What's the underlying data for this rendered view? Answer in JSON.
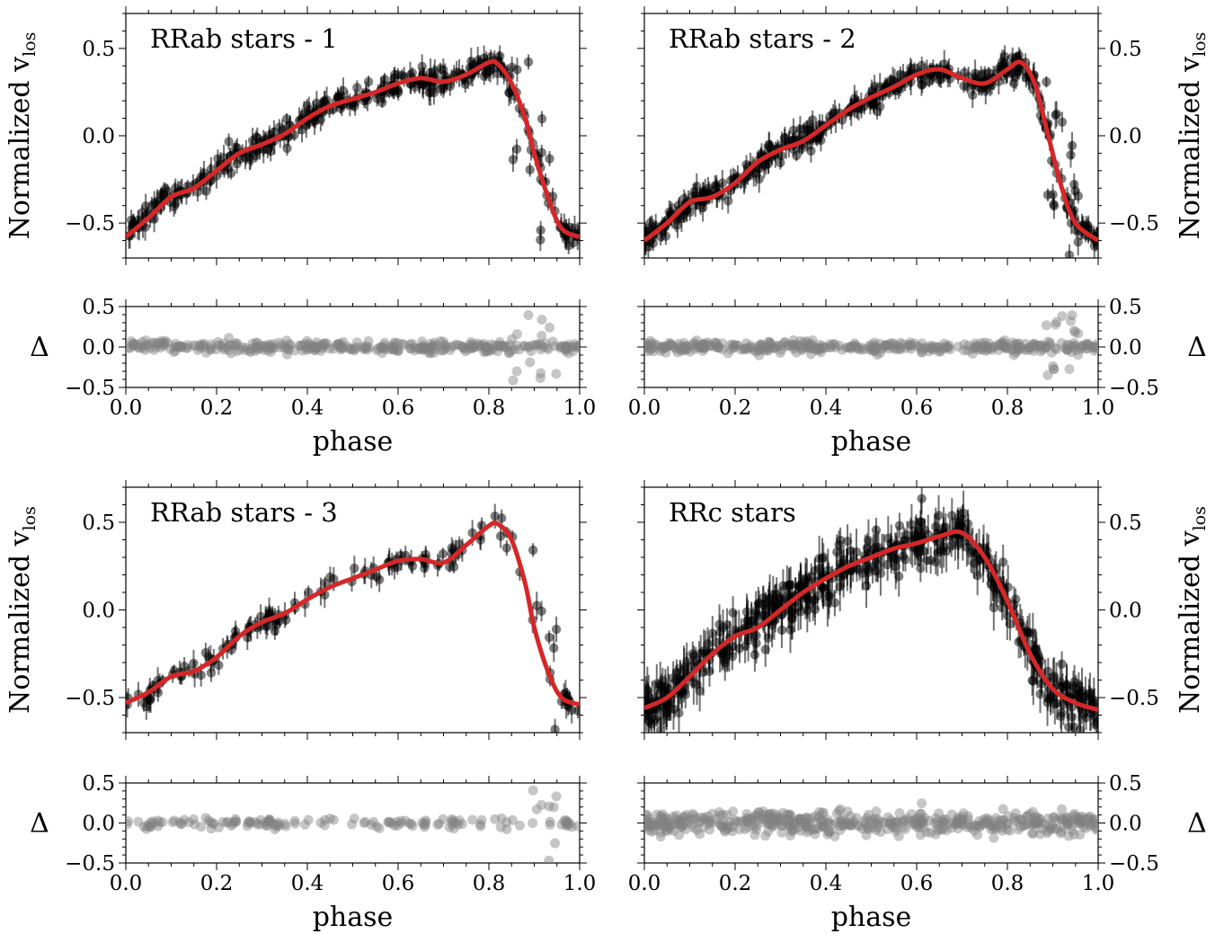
{
  "figure": {
    "shared_xlabel": "phase",
    "main_ylabel_left": "Normalized v",
    "main_ylabel_sub": "los",
    "residual_ylabel": "Δ"
  },
  "colors": {
    "model_curve": "#d62728",
    "data_points": "#000000",
    "residual_points": "#808080",
    "axes": "#000000",
    "background": "#ffffff"
  },
  "chart_data": [
    {
      "type": "scatter",
      "panel": "top-left",
      "title": "RRab stars - 1",
      "xlabel": "phase",
      "ylabel": "Normalized v_los",
      "ylabel_side": "left",
      "xlim": [
        0.0,
        1.0
      ],
      "ylim": [
        -0.7,
        0.7
      ],
      "yticks": [
        -0.5,
        0.0,
        0.5
      ],
      "ytick_labels": [
        "−0.5",
        "0.0",
        "0.5"
      ],
      "xticks": [
        0.0,
        0.2,
        0.4,
        0.6,
        0.8,
        1.0
      ],
      "xtick_labels": [
        "0.0",
        "0.2",
        "0.4",
        "0.6",
        "0.8",
        "1.0"
      ],
      "model_curve": {
        "x": [
          0.0,
          0.05,
          0.1,
          0.15,
          0.2,
          0.25,
          0.3,
          0.35,
          0.4,
          0.45,
          0.5,
          0.55,
          0.6,
          0.65,
          0.7,
          0.75,
          0.8,
          0.82,
          0.85,
          0.88,
          0.9,
          0.93,
          0.96,
          1.0
        ],
        "y": [
          -0.58,
          -0.47,
          -0.35,
          -0.3,
          -0.2,
          -0.1,
          -0.05,
          0.01,
          0.1,
          0.17,
          0.21,
          0.25,
          0.3,
          0.33,
          0.31,
          0.35,
          0.42,
          0.41,
          0.3,
          0.1,
          -0.1,
          -0.35,
          -0.53,
          -0.58
        ]
      },
      "points_approx_count": 350,
      "residuals": {
        "ylabel": "Δ",
        "ylim": [
          -0.5,
          0.5
        ],
        "yticks": [
          -0.5,
          0.0,
          0.5
        ],
        "ytick_labels": [
          "−0.5",
          "0.0",
          "0.5"
        ],
        "xlabel": "phase",
        "description_range": [
          -0.2,
          0.2
        ],
        "large_deviation_phase": [
          0.85,
          0.95
        ]
      }
    },
    {
      "type": "scatter",
      "panel": "top-right",
      "title": "RRab stars - 2",
      "xlabel": "phase",
      "ylabel": "Normalized v_los",
      "ylabel_side": "right",
      "xlim": [
        0.0,
        1.0
      ],
      "ylim": [
        -0.7,
        0.7
      ],
      "yticks": [
        -0.5,
        0.0,
        0.5
      ],
      "ytick_labels": [
        "−0.5",
        "0.0",
        "0.5"
      ],
      "xticks": [
        0.0,
        0.2,
        0.4,
        0.6,
        0.8,
        1.0
      ],
      "xtick_labels": [
        "0.0",
        "0.2",
        "0.4",
        "0.6",
        "0.8",
        "1.0"
      ],
      "model_curve": {
        "x": [
          0.0,
          0.05,
          0.1,
          0.15,
          0.2,
          0.25,
          0.3,
          0.35,
          0.4,
          0.45,
          0.5,
          0.55,
          0.6,
          0.65,
          0.7,
          0.75,
          0.8,
          0.83,
          0.86,
          0.89,
          0.92,
          0.95,
          1.0
        ],
        "y": [
          -0.6,
          -0.5,
          -0.38,
          -0.35,
          -0.27,
          -0.15,
          -0.08,
          -0.03,
          0.06,
          0.15,
          0.22,
          0.28,
          0.35,
          0.38,
          0.33,
          0.3,
          0.38,
          0.42,
          0.3,
          0.0,
          -0.3,
          -0.5,
          -0.6
        ]
      },
      "points_approx_count": 400,
      "residuals": {
        "ylabel": "Δ",
        "ylim": [
          -0.5,
          0.5
        ],
        "yticks": [
          -0.5,
          0.0,
          0.5
        ],
        "ytick_labels": [
          "−0.5",
          "0.0",
          "0.5"
        ],
        "xlabel": "phase",
        "description_range": [
          -0.2,
          0.2
        ],
        "large_deviation_phase": [
          0.88,
          0.96
        ]
      }
    },
    {
      "type": "scatter",
      "panel": "bottom-left",
      "title": "RRab stars - 3",
      "xlabel": "phase",
      "ylabel": "Normalized v_los",
      "ylabel_side": "left",
      "xlim": [
        0.0,
        1.0
      ],
      "ylim": [
        -0.7,
        0.7
      ],
      "yticks": [
        -0.5,
        0.0,
        0.5
      ],
      "ytick_labels": [
        "−0.5",
        "0.0",
        "0.5"
      ],
      "xticks": [
        0.0,
        0.2,
        0.4,
        0.6,
        0.8,
        1.0
      ],
      "xtick_labels": [
        "0.0",
        "0.2",
        "0.4",
        "0.6",
        "0.8",
        "1.0"
      ],
      "model_curve": {
        "x": [
          0.0,
          0.05,
          0.1,
          0.15,
          0.2,
          0.25,
          0.3,
          0.35,
          0.4,
          0.45,
          0.5,
          0.55,
          0.6,
          0.65,
          0.7,
          0.75,
          0.8,
          0.82,
          0.85,
          0.88,
          0.9,
          0.93,
          0.96,
          1.0
        ],
        "y": [
          -0.53,
          -0.47,
          -0.38,
          -0.35,
          -0.27,
          -0.15,
          -0.07,
          -0.02,
          0.06,
          0.13,
          0.18,
          0.23,
          0.28,
          0.29,
          0.27,
          0.37,
          0.48,
          0.49,
          0.4,
          0.15,
          -0.1,
          -0.35,
          -0.5,
          -0.54
        ]
      },
      "points_approx_count": 150,
      "residuals": {
        "ylabel": "Δ",
        "ylim": [
          -0.5,
          0.5
        ],
        "yticks": [
          -0.5,
          0.0,
          0.5
        ],
        "ytick_labels": [
          "−0.5",
          "0.0",
          "0.5"
        ],
        "xlabel": "phase",
        "description_range": [
          -0.2,
          0.2
        ],
        "large_deviation_phase": [
          0.87,
          0.96
        ]
      }
    },
    {
      "type": "scatter",
      "panel": "bottom-right",
      "title": "RRc stars",
      "xlabel": "phase",
      "ylabel": "Normalized v_los",
      "ylabel_side": "right",
      "xlim": [
        0.0,
        1.0
      ],
      "ylim": [
        -0.7,
        0.7
      ],
      "yticks": [
        -0.5,
        0.0,
        0.5
      ],
      "ytick_labels": [
        "−0.5",
        "0.0",
        "0.5"
      ],
      "xticks": [
        0.0,
        0.2,
        0.4,
        0.6,
        0.8,
        1.0
      ],
      "xtick_labels": [
        "0.0",
        "0.2",
        "0.4",
        "0.6",
        "0.8",
        "1.0"
      ],
      "model_curve": {
        "x": [
          0.0,
          0.05,
          0.1,
          0.15,
          0.2,
          0.25,
          0.3,
          0.35,
          0.4,
          0.45,
          0.5,
          0.55,
          0.6,
          0.65,
          0.7,
          0.75,
          0.8,
          0.85,
          0.9,
          0.95,
          1.0
        ],
        "y": [
          -0.56,
          -0.5,
          -0.38,
          -0.25,
          -0.15,
          -0.1,
          0.0,
          0.1,
          0.18,
          0.25,
          0.3,
          0.35,
          0.38,
          0.42,
          0.44,
          0.3,
          0.05,
          -0.25,
          -0.45,
          -0.53,
          -0.57
        ]
      },
      "points_approx_count": 500,
      "residuals": {
        "ylabel": "Δ",
        "ylim": [
          -0.5,
          0.5
        ],
        "yticks": [
          -0.5,
          0.0,
          0.5
        ],
        "ytick_labels": [
          "−0.5",
          "0.0",
          "0.5"
        ],
        "xlabel": "phase",
        "description_range": [
          -0.3,
          0.3
        ]
      }
    }
  ]
}
